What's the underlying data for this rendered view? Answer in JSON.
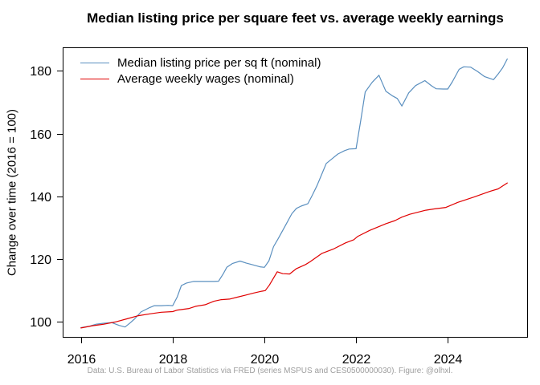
{
  "title": "Median listing price per square feet vs. average weekly earnings",
  "y_axis_label": "Change over time (2016 = 100)",
  "footer": "Data: U.S. Bureau of Labor Statistics via FRED (series MSPUS and CES0500000030). Figure: @olhxl.",
  "colors": {
    "median_listing_line": "#5a8fbf",
    "weekly_wages_line": "#e00000",
    "axis": "#000000",
    "footer_text": "#9e9e9e"
  },
  "chart_data": {
    "type": "line",
    "title": "Median listing price per square feet vs. average weekly earnings",
    "xlabel": "",
    "ylabel": "Change over time (2016 = 100)",
    "xlim": [
      2015.6,
      2025.75
    ],
    "ylim": [
      95,
      187.5
    ],
    "x_ticks": [
      2016,
      2018,
      2020,
      2022,
      2024
    ],
    "y_ticks": [
      100,
      120,
      140,
      160,
      180
    ],
    "grid": false,
    "legend_position": "top-left-inside",
    "frame": "full-box",
    "series": [
      {
        "name": "Median listing price per sq ft (nominal)",
        "color": "#5a8fbf",
        "x": [
          2016.0,
          2016.17,
          2016.33,
          2016.5,
          2016.67,
          2016.83,
          2016.96,
          2017.08,
          2017.17,
          2017.31,
          2017.5,
          2017.6,
          2017.75,
          2017.9,
          2018.0,
          2018.1,
          2018.19,
          2018.3,
          2018.45,
          2018.6,
          2018.75,
          2018.9,
          2019.0,
          2019.1,
          2019.18,
          2019.3,
          2019.47,
          2019.6,
          2019.75,
          2019.9,
          2020.0,
          2020.1,
          2020.2,
          2020.3,
          2020.45,
          2020.6,
          2020.7,
          2020.8,
          2020.95,
          2021.05,
          2021.15,
          2021.25,
          2021.35,
          2021.5,
          2021.6,
          2021.75,
          2021.85,
          2022.0,
          2022.1,
          2022.2,
          2022.35,
          2022.5,
          2022.65,
          2022.8,
          2022.9,
          2023.0,
          2023.15,
          2023.3,
          2023.5,
          2023.65,
          2023.75,
          2023.9,
          2024.0,
          2024.1,
          2024.25,
          2024.35,
          2024.5,
          2024.65,
          2024.8,
          2025.0,
          2025.1,
          2025.2,
          2025.3
        ],
        "y": [
          98.2,
          98.6,
          99.3,
          99.6,
          99.8,
          98.9,
          98.4,
          99.8,
          101.0,
          103.2,
          104.6,
          105.2,
          105.2,
          105.3,
          105.2,
          108.0,
          111.6,
          112.4,
          112.9,
          112.9,
          112.9,
          112.9,
          113.0,
          115.3,
          117.4,
          118.6,
          119.4,
          118.8,
          118.2,
          117.6,
          117.4,
          119.5,
          124.0,
          126.5,
          130.5,
          134.5,
          136.2,
          136.9,
          137.7,
          140.5,
          143.5,
          147.0,
          150.5,
          152.3,
          153.5,
          154.6,
          155.1,
          155.2,
          164.0,
          173.3,
          176.3,
          178.6,
          173.5,
          172.0,
          171.2,
          168.8,
          173.0,
          175.3,
          176.9,
          175.2,
          174.3,
          174.2,
          174.2,
          176.5,
          180.5,
          181.3,
          181.2,
          179.8,
          178.2,
          177.2,
          179.0,
          181.0,
          183.8
        ]
      },
      {
        "name": "Average weekly wages (nominal)",
        "color": "#e00000",
        "x": [
          2016.0,
          2016.25,
          2016.5,
          2016.75,
          2017.0,
          2017.25,
          2017.5,
          2017.75,
          2018.0,
          2018.1,
          2018.36,
          2018.5,
          2018.71,
          2018.9,
          2019.06,
          2019.24,
          2019.41,
          2019.6,
          2019.76,
          2019.94,
          2020.02,
          2020.11,
          2020.28,
          2020.4,
          2020.55,
          2020.7,
          2020.9,
          2021.0,
          2021.25,
          2021.5,
          2021.77,
          2021.95,
          2022.04,
          2022.3,
          2022.65,
          2022.85,
          2023.0,
          2023.17,
          2023.52,
          2023.7,
          2023.96,
          2024.22,
          2024.57,
          2024.92,
          2025.1,
          2025.3
        ],
        "y": [
          98.1,
          98.8,
          99.3,
          100.0,
          101.0,
          102.0,
          102.6,
          103.1,
          103.3,
          103.8,
          104.3,
          105.0,
          105.5,
          106.6,
          107.1,
          107.3,
          107.9,
          108.6,
          109.2,
          109.8,
          110.0,
          111.8,
          116.0,
          115.4,
          115.3,
          117.0,
          118.3,
          119.2,
          121.8,
          123.2,
          125.2,
          126.2,
          127.3,
          129.2,
          131.3,
          132.3,
          133.4,
          134.3,
          135.6,
          136.0,
          136.5,
          138.1,
          139.8,
          141.6,
          142.4,
          144.3
        ]
      }
    ]
  }
}
